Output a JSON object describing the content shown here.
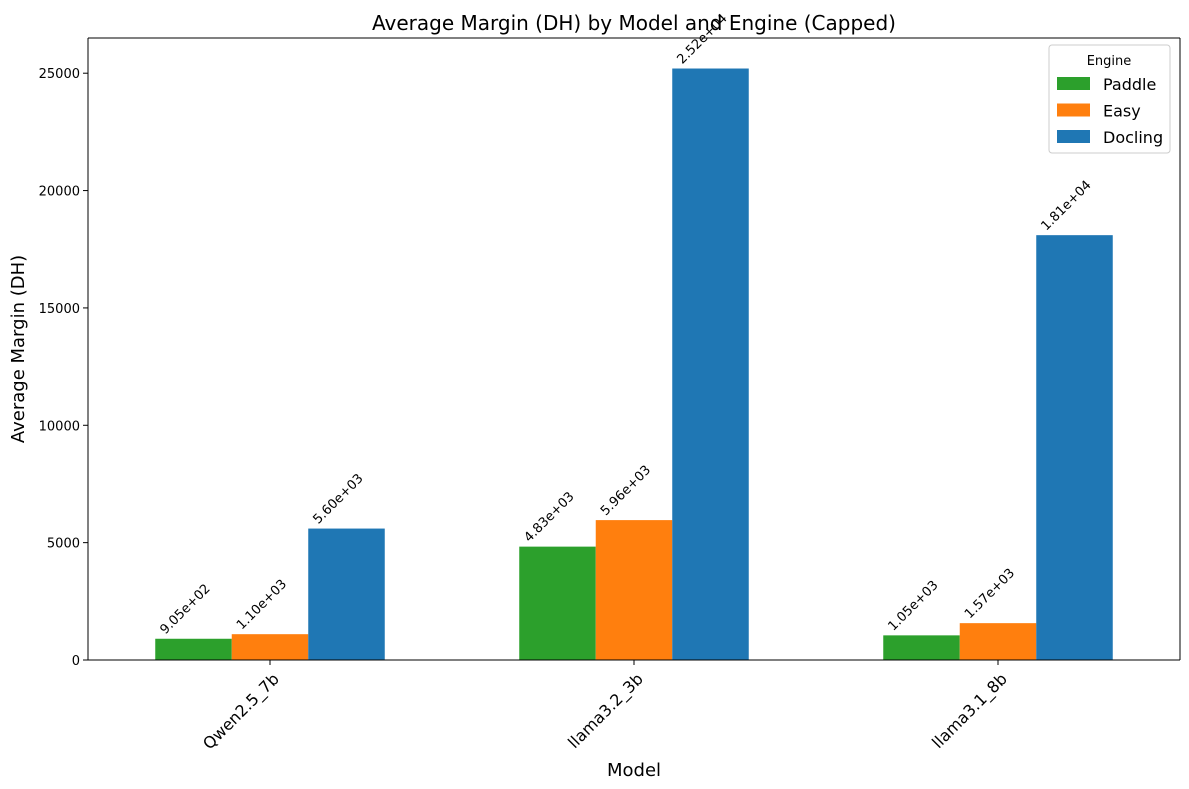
{
  "chart_data": {
    "type": "bar",
    "title": "Average Margin (DH) by Model and Engine (Capped)",
    "xlabel": "Model",
    "ylabel": "Average Margin (DH)",
    "categories": [
      "Qwen2.5_7b",
      "llama3.2_3b",
      "llama3.1_8b"
    ],
    "series": [
      {
        "name": "Paddle",
        "color": "#2ca02c",
        "values": [
          905,
          4830,
          1050
        ],
        "labels": [
          "9.05e+02",
          "4.83e+03",
          "1.05e+03"
        ]
      },
      {
        "name": "Easy",
        "color": "#ff7f0e",
        "values": [
          1100,
          5960,
          1570
        ],
        "labels": [
          "1.10e+03",
          "5.96e+03",
          "1.57e+03"
        ]
      },
      {
        "name": "Docling",
        "color": "#1f77b4",
        "values": [
          5600,
          25200,
          18100
        ],
        "labels": [
          "5.60e+03",
          "2.52e+04",
          "1.81e+04"
        ]
      }
    ],
    "ylim": [
      0,
      26500
    ],
    "yticks": [
      0,
      5000,
      10000,
      15000,
      20000,
      25000
    ],
    "legend": {
      "title": "Engine",
      "position": "top-right"
    },
    "grid": false
  }
}
